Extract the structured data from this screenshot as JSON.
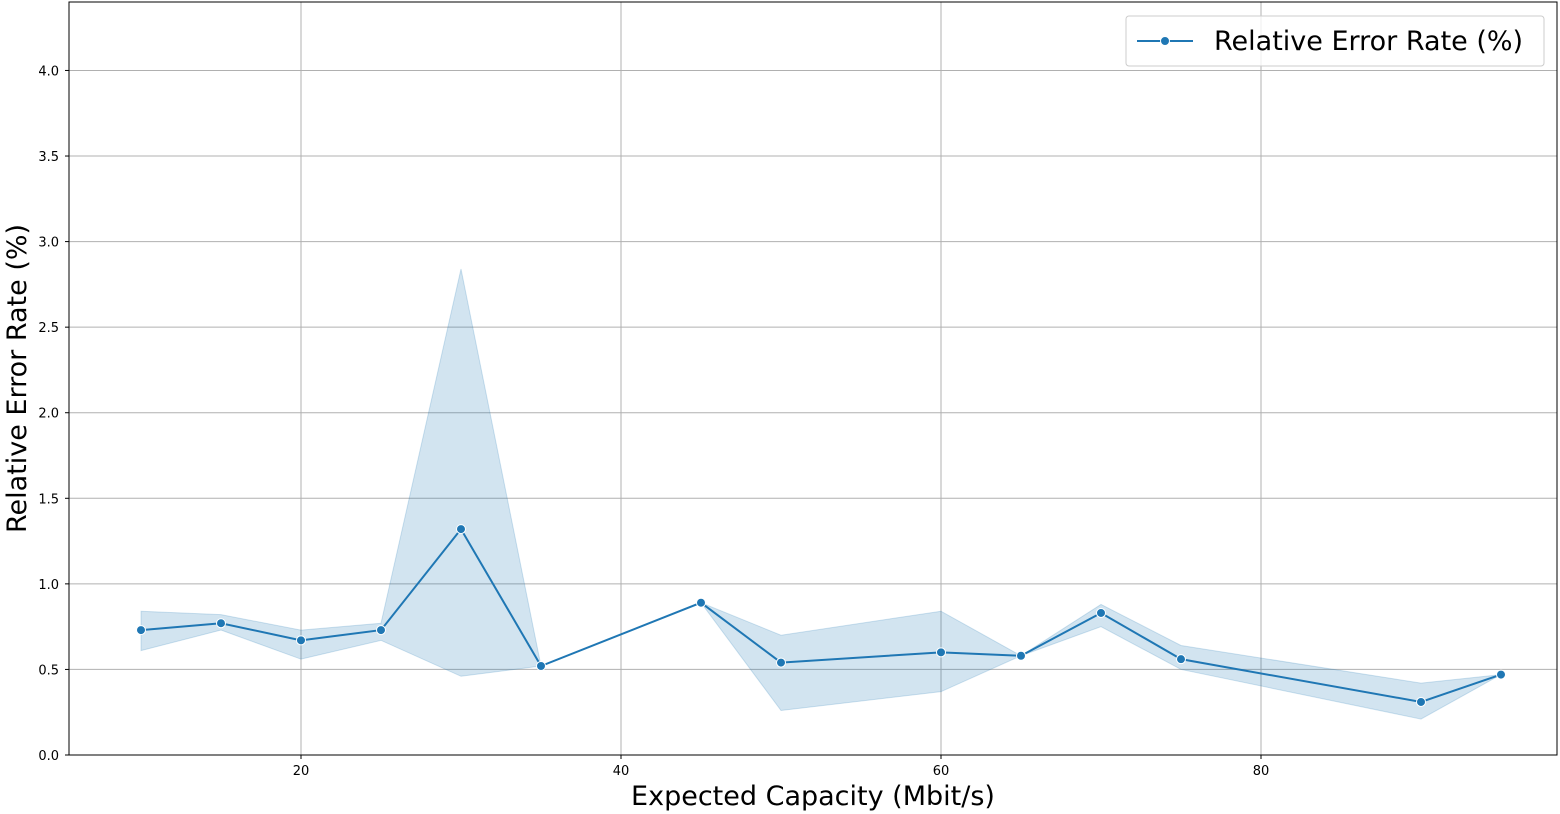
{
  "chart_data": {
    "type": "line",
    "title": "",
    "xlabel": "Expected Capacity (Mbit/s)",
    "ylabel": "Relative Error Rate (%)",
    "xlim": [
      5.5,
      98.5
    ],
    "ylim": [
      0,
      4.4
    ],
    "x_ticks": [
      20,
      40,
      60,
      80
    ],
    "x_tick_labels": [
      "20",
      "40",
      "60",
      "80"
    ],
    "y_ticks": [
      0.0,
      0.5,
      1.0,
      1.5,
      2.0,
      2.5,
      3.0,
      3.5,
      4.0
    ],
    "y_tick_labels": [
      "0.0",
      "0.5",
      "1.0",
      "1.5",
      "2.0",
      "2.5",
      "3.0",
      "3.5",
      "4.0"
    ],
    "grid": true,
    "legend_position": "top-right",
    "series": [
      {
        "name": "Relative Error Rate (%)",
        "color": "#1f77b4",
        "marker": "circle",
        "x": [
          10,
          15,
          20,
          25,
          30,
          35,
          45,
          50,
          60,
          65,
          70,
          75,
          90,
          95
        ],
        "y": [
          0.73,
          0.77,
          0.67,
          0.73,
          1.32,
          0.52,
          0.89,
          0.54,
          0.6,
          0.58,
          0.83,
          0.56,
          0.31,
          0.47
        ],
        "ci_lower": [
          0.61,
          0.73,
          0.56,
          0.67,
          0.46,
          0.52,
          0.89,
          0.26,
          0.37,
          0.58,
          0.75,
          0.5,
          0.21,
          0.47
        ],
        "ci_upper": [
          0.84,
          0.82,
          0.73,
          0.77,
          2.84,
          0.52,
          0.89,
          0.7,
          0.84,
          0.58,
          0.88,
          0.64,
          0.42,
          0.47
        ]
      }
    ]
  }
}
